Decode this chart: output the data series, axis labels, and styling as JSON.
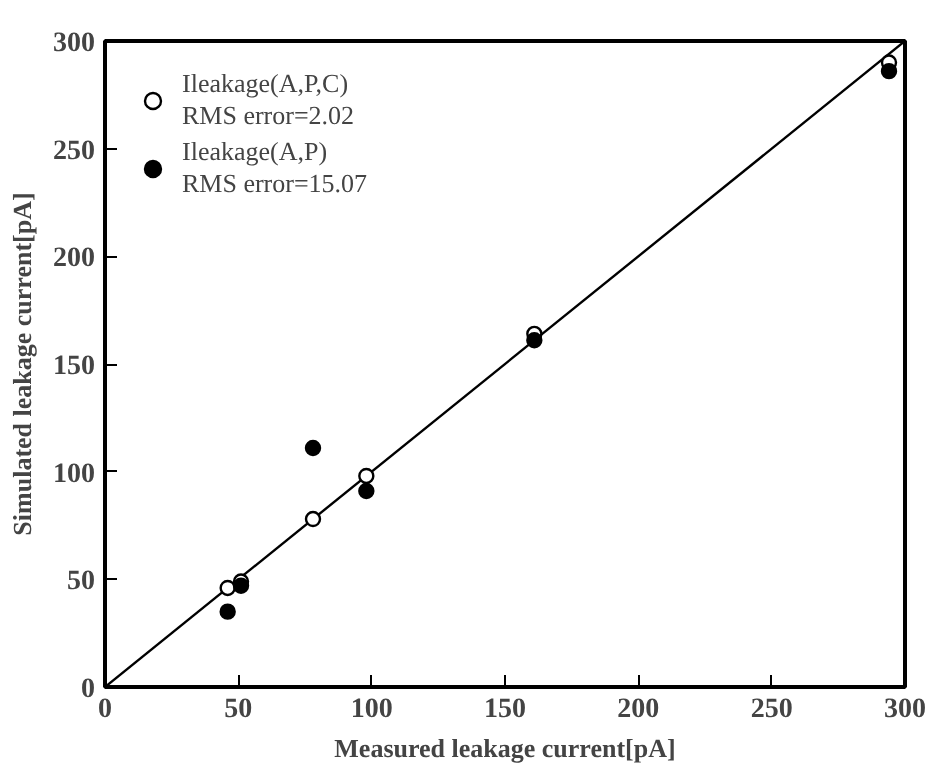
{
  "chart_data": {
    "type": "scatter",
    "xlabel": "Measured leakage current[pA]",
    "ylabel": "Simulated leakage current[pA]",
    "xlim": [
      0,
      300
    ],
    "ylim": [
      0,
      300
    ],
    "xticks": [
      0,
      50,
      100,
      150,
      200,
      250,
      300
    ],
    "yticks": [
      0,
      50,
      100,
      150,
      200,
      250,
      300
    ],
    "grid": false,
    "legend": "top left",
    "series": [
      {
        "type": "line",
        "x": [
          0,
          300
        ],
        "values": [
          0,
          300
        ],
        "color": "#000000",
        "marker": "none"
      },
      {
        "name": "Ileakage(A,P,C)\nRMS error=2.02",
        "marker": "circle",
        "color": "#ffffff",
        "x": [
          46,
          51,
          78,
          98,
          161,
          294
        ],
        "values": [
          46,
          49,
          78,
          98,
          164,
          290
        ]
      },
      {
        "name": "Ileakage(A,P)\nRMS error=15.07",
        "marker": "circle",
        "color": "#000000",
        "x": [
          46,
          51,
          78,
          98,
          161,
          294
        ],
        "values": [
          35,
          47,
          111,
          91,
          161,
          286
        ]
      }
    ]
  }
}
